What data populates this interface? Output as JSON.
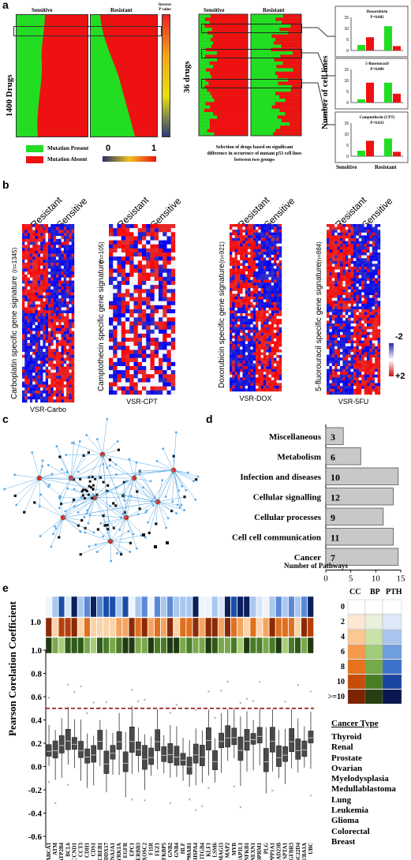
{
  "panel_a": {
    "label": "a",
    "left_y_label": "1400 Drugs",
    "left_col1": "Sensitive",
    "left_col2": "Resistant",
    "pvalue_label_line1": "Inverse",
    "pvalue_label_line2": "P value",
    "legend_present": "Mutation Present",
    "legend_absent": "Mutation Absent",
    "legend_present_color": "#22dd22",
    "legend_absent_color": "#ee1111",
    "gradient_min": "0",
    "gradient_max": "1",
    "mid_y_label": "36 drugs",
    "mid_col1": "Sensitive",
    "mid_col2": "Resistant",
    "mid_caption_line1": "Selection of drugs based on significant",
    "mid_caption_line2": "difference in occurence of mutant p53 cell lines",
    "mid_caption_line3": "between two groups",
    "right_y_label": "Number of cell lines",
    "right_x1": "Sensitive",
    "right_x2": "Resistant",
    "chart_data": [
      {
        "type": "bar",
        "title": "Doxorubicin",
        "subtitle": "P=0.002",
        "categories": [
          "Sensitive",
          "Resistant"
        ],
        "series": [
          {
            "name": "Mutation Present",
            "values": [
              2.5,
              11
            ]
          },
          {
            "name": "Mutation Absent",
            "values": [
              6,
              2
            ]
          }
        ],
        "ylim": [
          0,
          15
        ],
        "yticks": [
          "0",
          "5",
          "10",
          "15"
        ]
      },
      {
        "type": "bar",
        "title": "5-fluorouracil",
        "subtitle": "P=0.009",
        "categories": [
          "Sensitive",
          "Resistant"
        ],
        "series": [
          {
            "name": "Mutation Present",
            "values": [
              1.5,
              9
            ]
          },
          {
            "name": "Mutation Absent",
            "values": [
              9,
              4
            ]
          }
        ],
        "ylim": [
          0,
          15
        ],
        "yticks": [
          "0",
          "5",
          "10",
          "15"
        ]
      },
      {
        "type": "bar",
        "title": "Camptothecin (CPT)",
        "subtitle": "P=0.023",
        "categories": [
          "Sensitive",
          "Resistant"
        ],
        "series": [
          {
            "name": "Mutation Present",
            "values": [
              2.5,
              8
            ]
          },
          {
            "name": "Mutation Absent",
            "values": [
              7,
              2
            ]
          }
        ],
        "ylim": [
          0,
          15
        ],
        "yticks": [
          "0",
          "5",
          "10",
          "15"
        ]
      }
    ]
  },
  "panel_b": {
    "label": "b",
    "legend_top": "-2",
    "legend_bottom": "+2",
    "maps": [
      {
        "col1": "Resistant",
        "col2": "Sensitive",
        "ylabel": "Carboplatin specific gene signature",
        "count": "(n=1345)",
        "xlabel": "VSR-Carbo"
      },
      {
        "col1": "Resistant",
        "col2": "Sensitive",
        "ylabel": "Camptothecin specific gene signature",
        "count": "(n=105)",
        "xlabel": "VSR-CPT"
      },
      {
        "col1": "Resistant",
        "col2": "Sensitive",
        "ylabel": "Doxorubicin specific gene signature",
        "count": "(n=921)",
        "xlabel": "VSR-DOX"
      },
      {
        "col1": "Resistant",
        "col2": "Sensitive",
        "ylabel": "5-fluorouracil specific gene signature",
        "count": "(n=884)",
        "xlabel": "VSR-5FU"
      }
    ]
  },
  "panel_c": {
    "label": "c"
  },
  "panel_d": {
    "label": "d",
    "xlabel": "Number of Pathways",
    "chart_data": {
      "type": "bar",
      "categories": [
        "Miscellaneous",
        "Metabolism",
        "Infection and diseases",
        "Cellular signalling",
        "Cellular processes",
        "Cell cell communication",
        "Cancer"
      ],
      "values": [
        3,
        6,
        10,
        12,
        9,
        11,
        7
      ],
      "bar_lengths": [
        3.5,
        7,
        14.5,
        13.5,
        11.5,
        13.5,
        14.5
      ],
      "xlim": [
        0,
        15
      ],
      "xticks": [
        "0",
        "5",
        "10",
        "15"
      ],
      "bar_color": "#c8c8c8"
    }
  },
  "panel_e": {
    "label": "e",
    "ylabel": "Pearson Corelation Coefficient",
    "row_label_10": "1.0",
    "legend_headers": [
      "CC",
      "BP",
      "PTH"
    ],
    "legend_levels": [
      "0",
      "2",
      "4",
      "6",
      "8",
      "10",
      ">=10"
    ],
    "cancer_type_title": "Cancer Type",
    "cancer_types": [
      "Thyroid",
      "Renal",
      "Prostate",
      "Ovarian",
      "Myelodysplasia",
      "Medullablastoma",
      "Lung",
      "Leukemia",
      "Glioma",
      "Colorectal",
      "Breast"
    ],
    "chart_data": {
      "type": "box",
      "ylim": [
        -0.7,
        1.1
      ],
      "yticks": [
        "-0.6",
        "-0.4",
        "-0.2",
        "0.0",
        "0.2",
        "0.4",
        "0.6",
        "0.8",
        "1.0"
      ],
      "threshold": 0.5,
      "genes": [
        "ABCA1",
        "ATM",
        "ATP2B4",
        "BCL6",
        "CCND1",
        "CCT3",
        "CDH1",
        "CDS1",
        "CREB1",
        "DDX17",
        "DNAJA1",
        "DYRK1A",
        "EGFR",
        "EPC1",
        "ERBB3",
        "EXOSC2",
        "F11R",
        "FEZ1",
        "FKBP5",
        "GNB2",
        "GNB4",
        "HLF",
        "HSP90AB1",
        "HSPA4",
        "ITGB4",
        "KLF1",
        "LSM6",
        "MAGI3",
        "MAP2",
        "MYB",
        "NAP1L1",
        "NFKB1",
        "NEXN1",
        "OPRM1",
        "PLG",
        "PPP1A1",
        "RAD23B",
        "SPTA1",
        "TGFBR3",
        "TSC22D4",
        "TUBA1A",
        "UBC"
      ]
    }
  }
}
